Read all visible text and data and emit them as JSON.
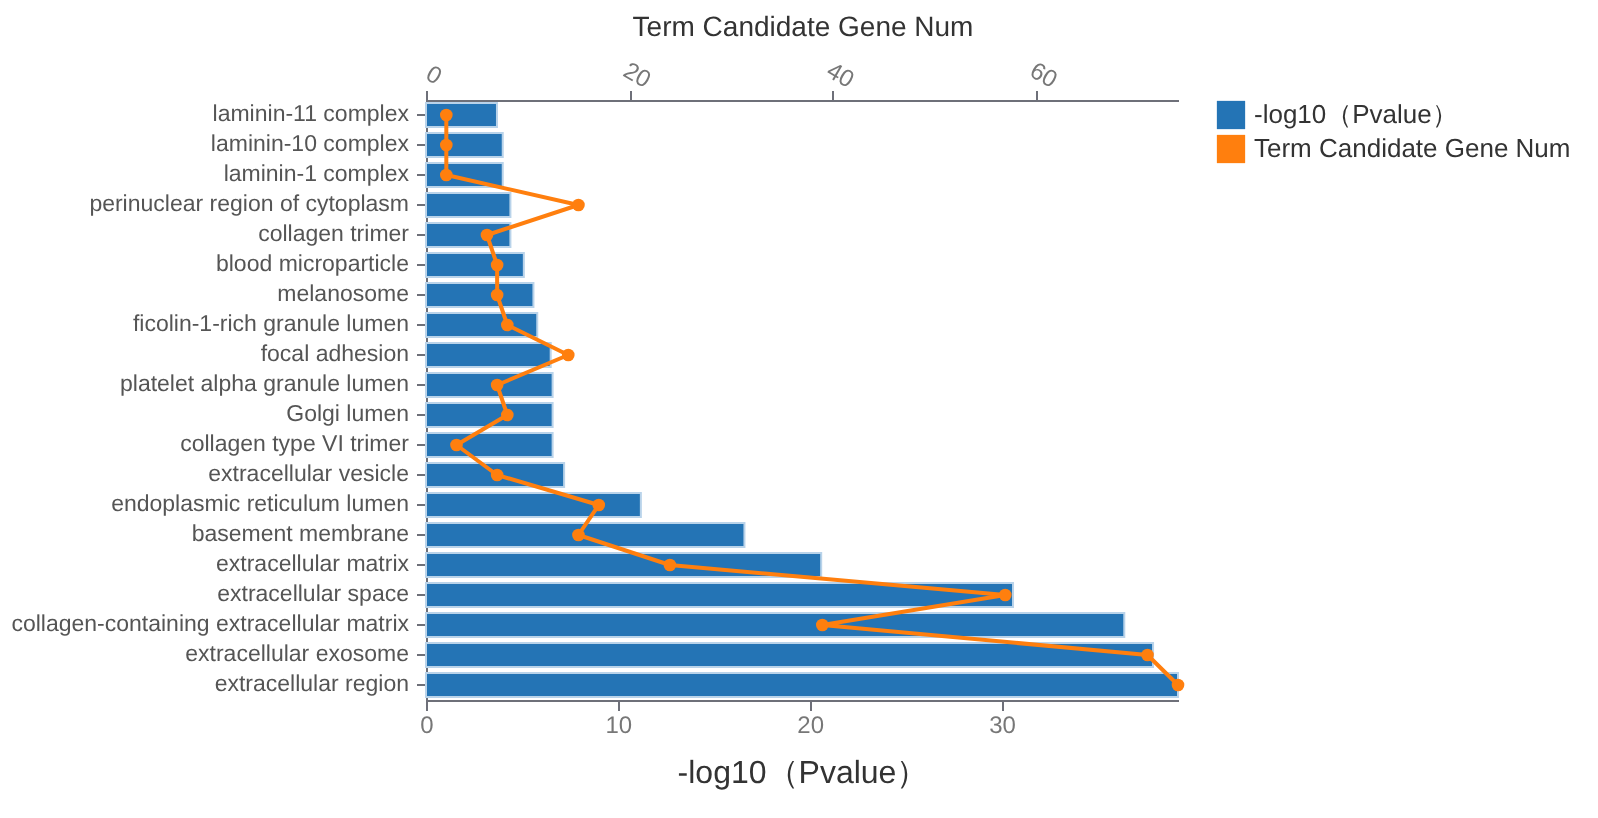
{
  "chart_data": {
    "type": "bar",
    "orientation": "horizontal",
    "xlabel": "-log10（Pvalue）",
    "x2label": "Term Candidate Gene Num",
    "categories": [
      "laminin-11 complex",
      "laminin-10 complex",
      "laminin-1 complex",
      "perinuclear region of cytoplasm",
      "collagen trimer",
      "blood microparticle",
      "melanosome",
      "ficolin-1-rich granule lumen",
      "focal adhesion",
      "platelet alpha granule lumen",
      "Golgi lumen",
      "collagen type VI trimer",
      "extracellular vesicle",
      "endoplasmic reticulum lumen",
      "basement membrane",
      "extracellular matrix",
      "extracellular space",
      "collagen-containing extracellular matrix",
      "extracellular exosome",
      "extracellular region"
    ],
    "series": [
      {
        "name": "-log10（Pvalue）",
        "color": "#2474b5",
        "values": [
          3.7,
          4.0,
          4.0,
          4.4,
          4.4,
          5.1,
          5.6,
          5.8,
          6.5,
          6.6,
          6.6,
          6.6,
          7.2,
          11.2,
          16.6,
          20.6,
          30.6,
          36.4,
          37.9,
          39.2
        ]
      },
      {
        "name": "Term Candidate Gene Num",
        "type": "line",
        "axis": "x2",
        "color": "#ff7f0e",
        "values": [
          2,
          2,
          2,
          15,
          6,
          7,
          7,
          8,
          14,
          7,
          8,
          3,
          7,
          17,
          15,
          24,
          57,
          39,
          71,
          74
        ]
      }
    ],
    "xlim": [
      0,
      39.2
    ],
    "xticks": [
      0,
      10,
      20,
      30
    ],
    "x2lim": [
      0,
      74
    ],
    "x2ticks": [
      0,
      20,
      40,
      60
    ],
    "legend": "top right",
    "marker": "circle"
  }
}
